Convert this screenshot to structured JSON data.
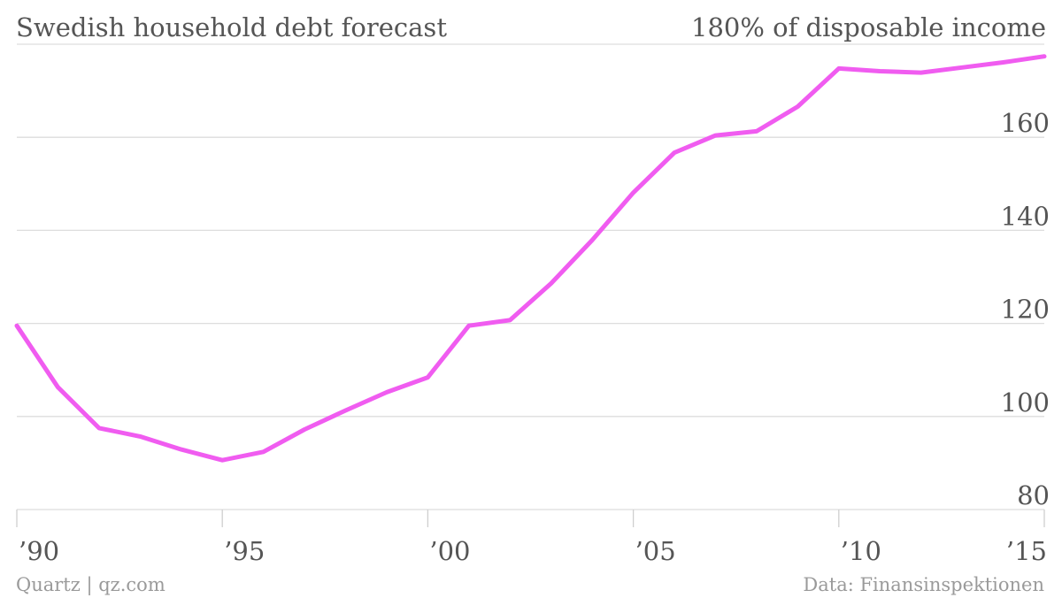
{
  "colors": {
    "line": "#f05cf0",
    "grid": "#dddddd",
    "axis": "#cfcfcf",
    "text": "#555555",
    "footer": "#9a9a9a"
  },
  "footer": {
    "source_left": "Quartz | qz.com",
    "source_right": "Data: Finansinspektionen"
  },
  "chart_data": {
    "type": "line",
    "title": "Swedish household debt forecast",
    "unit_label": "180% of disposable income",
    "x_tick_values": [
      1990,
      1995,
      2000,
      2005,
      2010,
      2015
    ],
    "x_tick_labels": [
      "’90",
      "’95",
      "’00",
      "’05",
      "’10",
      "’15"
    ],
    "y_tick_values": [
      80,
      100,
      120,
      140,
      160
    ],
    "y_tick_labels": [
      "80",
      "100",
      "120",
      "140",
      "160"
    ],
    "xlim": [
      1990,
      2015
    ],
    "ylim": [
      80,
      180
    ],
    "grid": true,
    "series": [
      {
        "x": [
          1990,
          1991,
          1992,
          1993,
          1994,
          1995,
          1996,
          1997,
          1998,
          1999,
          2000,
          2001,
          2002,
          2003,
          2004,
          2005,
          2006,
          2007,
          2008,
          2009,
          2010,
          2011,
          2012,
          2013,
          2014,
          2015
        ],
        "values": [
          119.5,
          106.3,
          97.5,
          95.7,
          92.9,
          90.6,
          92.4,
          97.2,
          101.3,
          105.2,
          108.4,
          119.5,
          120.7,
          128.6,
          137.9,
          148.1,
          156.7,
          160.4,
          161.3,
          166.6,
          174.8,
          174.2,
          173.9,
          175.0,
          176.1,
          177.4
        ]
      }
    ]
  }
}
